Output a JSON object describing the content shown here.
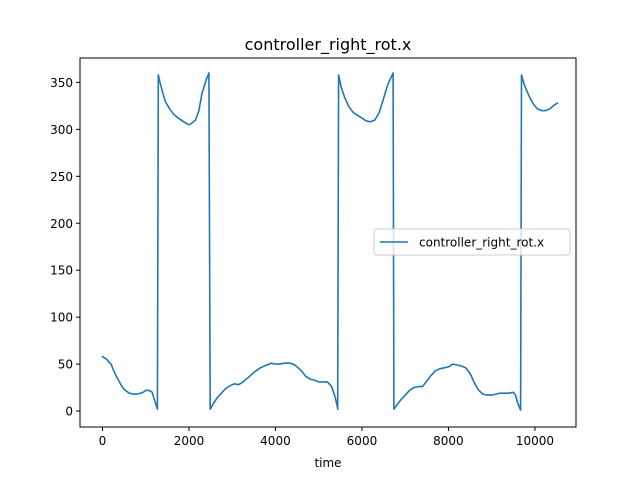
{
  "chart_data": {
    "type": "line",
    "title": "controller_right_rot.x",
    "xlabel": "time",
    "ylabel": "",
    "xlim": [
      -520,
      10950
    ],
    "ylim": [
      -17,
      376
    ],
    "xticks": [
      0,
      2000,
      4000,
      6000,
      8000,
      10000
    ],
    "yticks": [
      0,
      50,
      100,
      150,
      200,
      250,
      300,
      350
    ],
    "grid": false,
    "legend_position": "center-right",
    "series": [
      {
        "name": "controller_right_rot.x",
        "color": "#1f77b4",
        "points": [
          [
            0,
            58
          ],
          [
            100,
            55
          ],
          [
            150,
            52
          ],
          [
            200,
            50
          ],
          [
            260,
            43
          ],
          [
            320,
            37
          ],
          [
            380,
            32
          ],
          [
            440,
            27
          ],
          [
            500,
            23
          ],
          [
            560,
            21
          ],
          [
            620,
            19
          ],
          [
            700,
            18
          ],
          [
            800,
            18
          ],
          [
            880,
            19
          ],
          [
            940,
            20
          ],
          [
            1000,
            22
          ],
          [
            1080,
            22
          ],
          [
            1150,
            20
          ],
          [
            1200,
            12
          ],
          [
            1250,
            5
          ],
          [
            1270,
            2
          ],
          [
            1290,
            358
          ],
          [
            1330,
            350
          ],
          [
            1400,
            338
          ],
          [
            1450,
            330
          ],
          [
            1550,
            322
          ],
          [
            1650,
            316
          ],
          [
            1750,
            312
          ],
          [
            1850,
            309
          ],
          [
            1950,
            306
          ],
          [
            2000,
            305
          ],
          [
            2050,
            306
          ],
          [
            2150,
            310
          ],
          [
            2230,
            320
          ],
          [
            2300,
            338
          ],
          [
            2400,
            353
          ],
          [
            2460,
            360
          ],
          [
            2490,
            2
          ],
          [
            2550,
            7
          ],
          [
            2650,
            14
          ],
          [
            2750,
            19
          ],
          [
            2850,
            24
          ],
          [
            2950,
            27
          ],
          [
            3050,
            29
          ],
          [
            3150,
            28
          ],
          [
            3250,
            31
          ],
          [
            3350,
            35
          ],
          [
            3500,
            41
          ],
          [
            3650,
            46
          ],
          [
            3800,
            49
          ],
          [
            3900,
            51
          ],
          [
            4000,
            50
          ],
          [
            4100,
            50
          ],
          [
            4200,
            51
          ],
          [
            4350,
            51
          ],
          [
            4450,
            49
          ],
          [
            4600,
            43
          ],
          [
            4700,
            37
          ],
          [
            4800,
            34
          ],
          [
            4900,
            33
          ],
          [
            5000,
            31
          ],
          [
            5100,
            31
          ],
          [
            5200,
            31
          ],
          [
            5300,
            26
          ],
          [
            5380,
            15
          ],
          [
            5430,
            5
          ],
          [
            5440,
            2
          ],
          [
            5460,
            358
          ],
          [
            5520,
            345
          ],
          [
            5600,
            334
          ],
          [
            5700,
            324
          ],
          [
            5800,
            318
          ],
          [
            5900,
            315
          ],
          [
            6000,
            312
          ],
          [
            6100,
            309
          ],
          [
            6200,
            308
          ],
          [
            6300,
            310
          ],
          [
            6400,
            318
          ],
          [
            6500,
            333
          ],
          [
            6600,
            348
          ],
          [
            6700,
            358
          ],
          [
            6720,
            360
          ],
          [
            6740,
            2
          ],
          [
            6800,
            6
          ],
          [
            6900,
            12
          ],
          [
            7000,
            17
          ],
          [
            7100,
            22
          ],
          [
            7200,
            25
          ],
          [
            7300,
            26
          ],
          [
            7400,
            26
          ],
          [
            7500,
            32
          ],
          [
            7600,
            38
          ],
          [
            7700,
            43
          ],
          [
            7800,
            45
          ],
          [
            7900,
            46
          ],
          [
            8000,
            47
          ],
          [
            8100,
            50
          ],
          [
            8200,
            49
          ],
          [
            8300,
            48
          ],
          [
            8400,
            46
          ],
          [
            8500,
            40
          ],
          [
            8600,
            30
          ],
          [
            8700,
            22
          ],
          [
            8800,
            18
          ],
          [
            8900,
            17
          ],
          [
            9000,
            17
          ],
          [
            9100,
            18
          ],
          [
            9200,
            19
          ],
          [
            9300,
            19
          ],
          [
            9400,
            19
          ],
          [
            9500,
            20
          ],
          [
            9550,
            17
          ],
          [
            9600,
            9
          ],
          [
            9650,
            3
          ],
          [
            9670,
            1
          ],
          [
            9690,
            358
          ],
          [
            9750,
            348
          ],
          [
            9850,
            337
          ],
          [
            9950,
            328
          ],
          [
            10050,
            322
          ],
          [
            10150,
            320
          ],
          [
            10250,
            320
          ],
          [
            10350,
            322
          ],
          [
            10450,
            326
          ],
          [
            10520,
            328
          ]
        ]
      }
    ]
  }
}
